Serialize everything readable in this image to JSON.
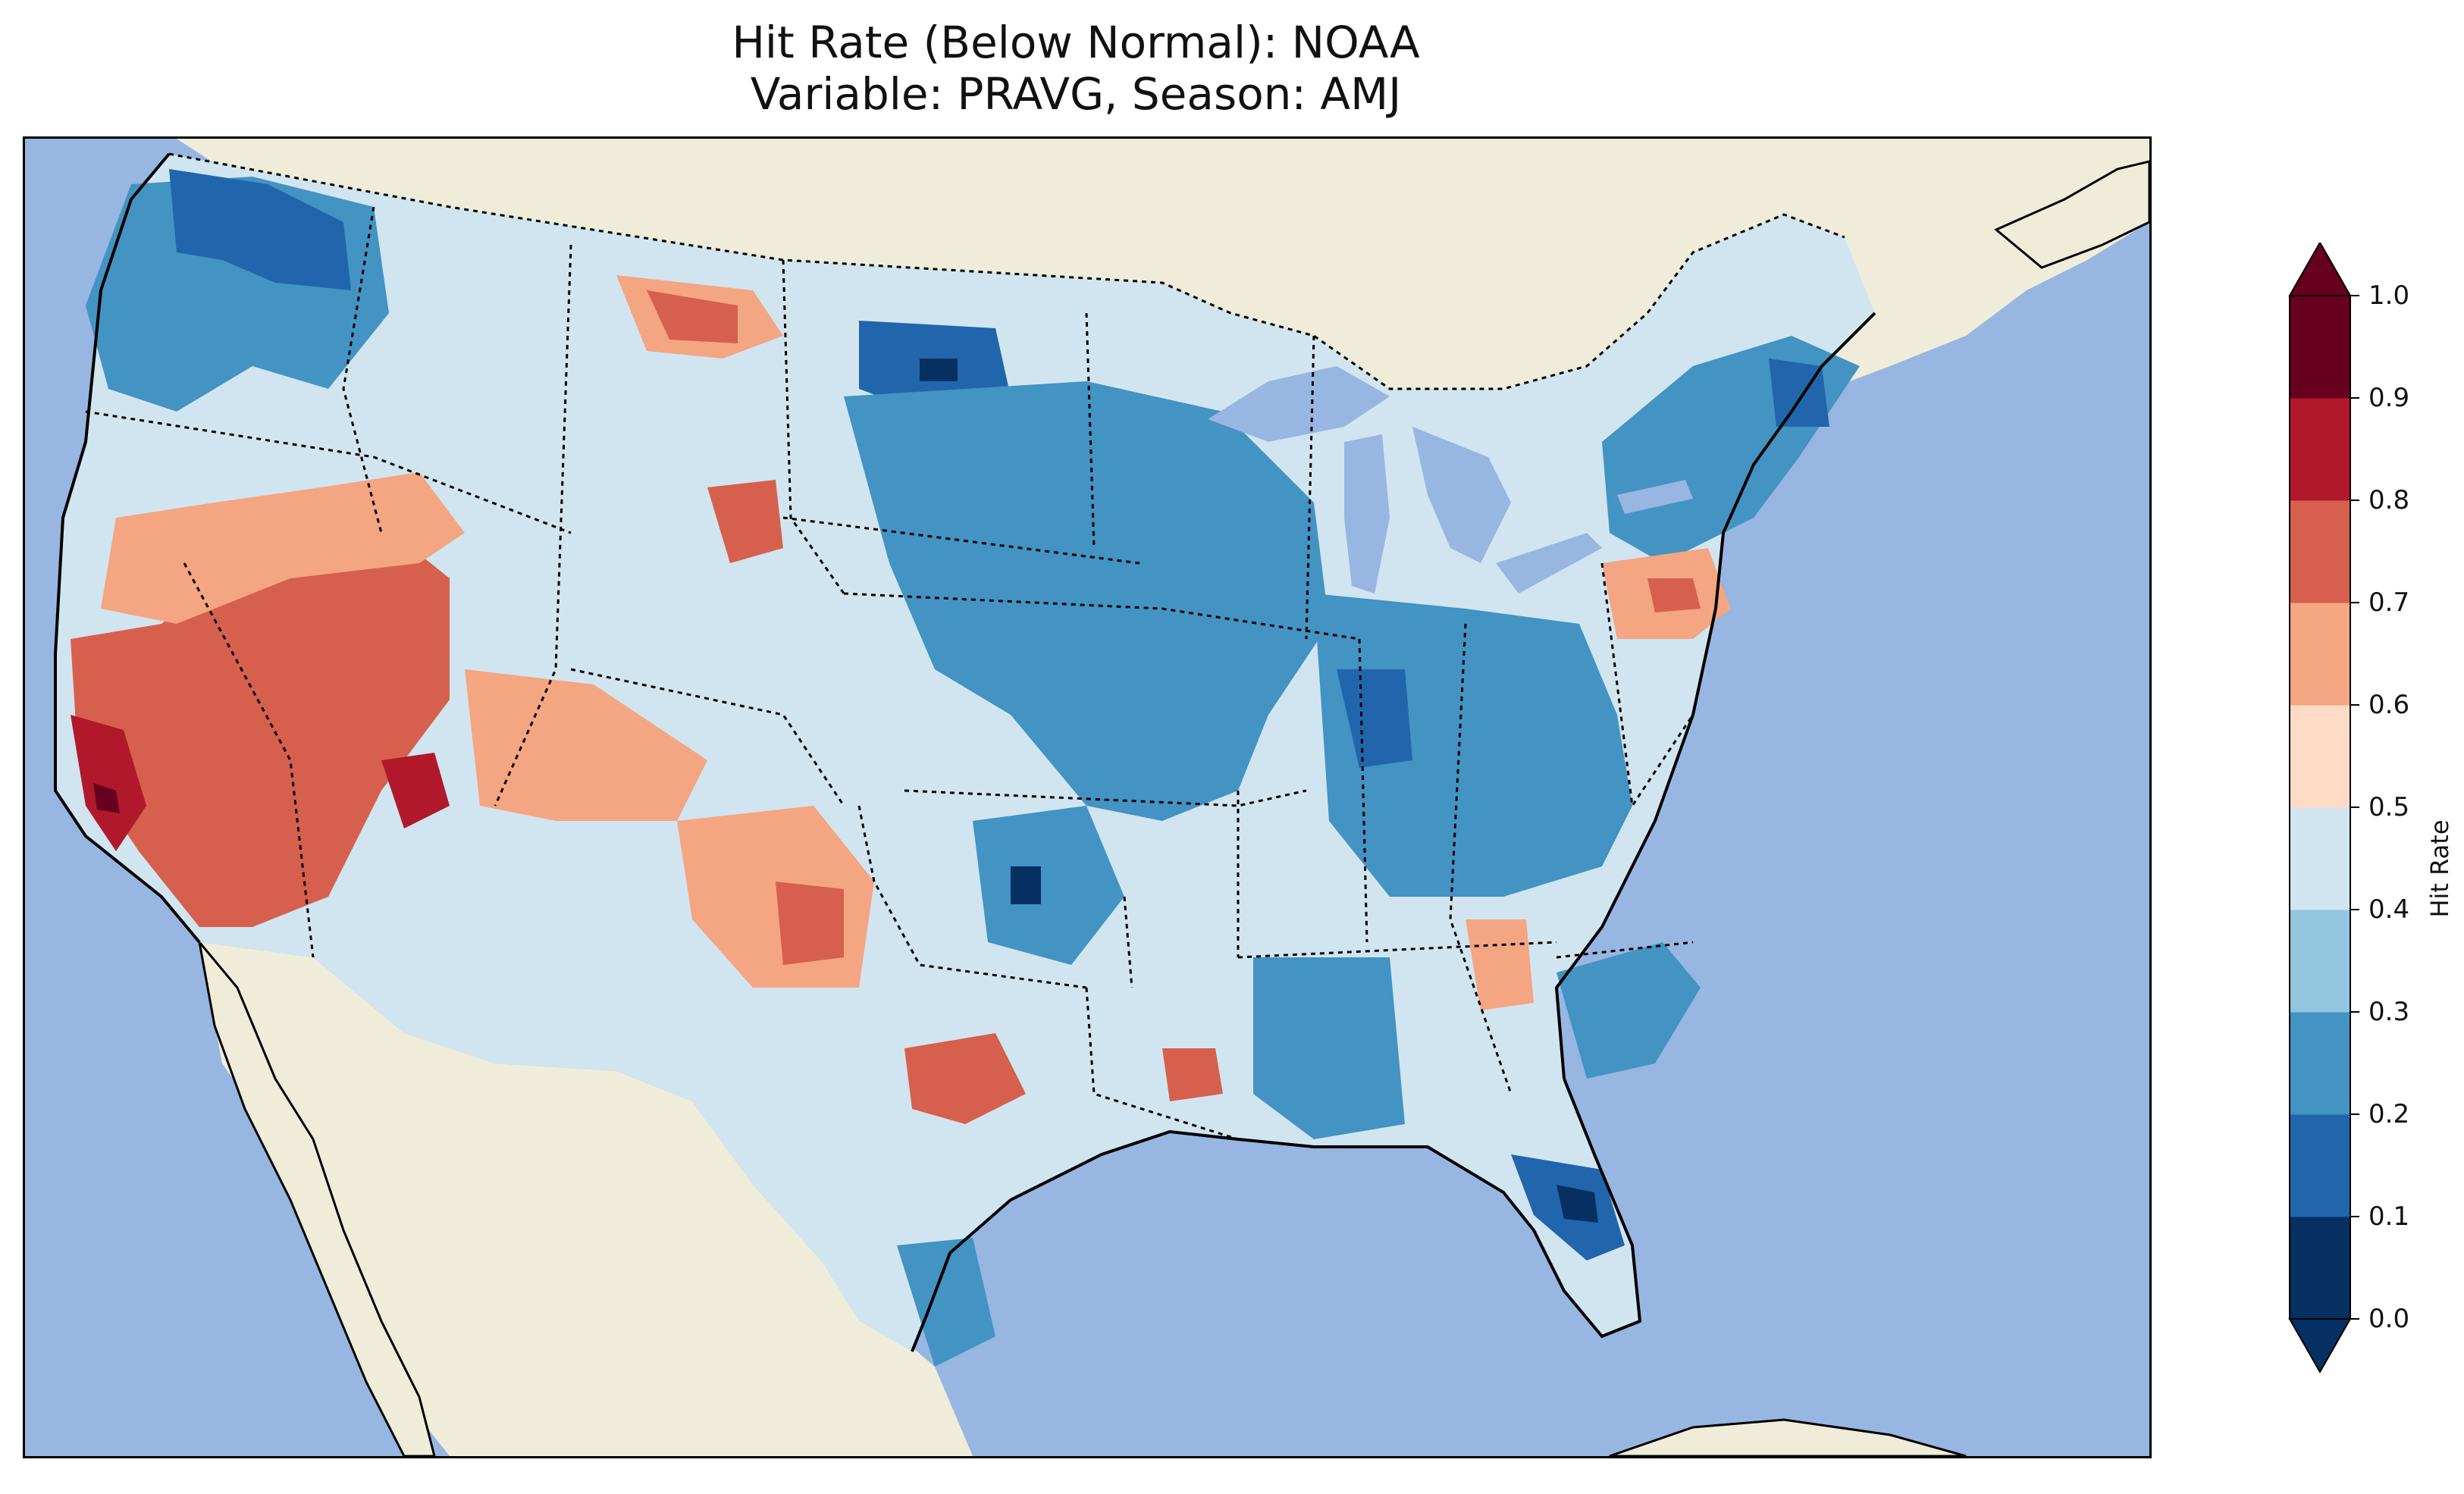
{
  "title": {
    "line1": "Hit Rate (Below Normal): NOAA",
    "line2": "Variable: PRAVG, Season: AMJ"
  },
  "colorbar": {
    "label": "Hit Rate",
    "ticks": [
      "0.0",
      "0.1",
      "0.2",
      "0.3",
      "0.4",
      "0.5",
      "0.6",
      "0.7",
      "0.8",
      "0.9",
      "1.0"
    ],
    "colors": [
      "#053061",
      "#2166ac",
      "#4393c3",
      "#92c5de",
      "#d1e5f0",
      "#fddbc7",
      "#f4a582",
      "#d6604d",
      "#b2182b",
      "#67001f"
    ],
    "extend": "both"
  },
  "map": {
    "ocean_color": "#97b6e1",
    "land_color": "#efedda",
    "lake_color": "#97b6e1"
  }
}
